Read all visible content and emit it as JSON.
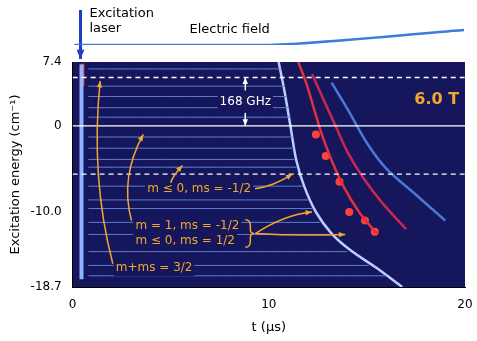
{
  "chart_data": [
    {
      "type": "line",
      "x_label": "t (µs)",
      "y_label": "Excitation energy (cm⁻¹)",
      "xlim": [
        0,
        20
      ],
      "xticks": [
        0,
        10,
        20
      ],
      "ylim": [
        -18.7,
        7.4
      ],
      "yticks": [
        -18.7,
        {
          "value": -10,
          "label": "-10.0"
        },
        0,
        7.4
      ],
      "grid": false,
      "annotations": {
        "laser": "Excitation laser",
        "splitting": "168 GHz",
        "field_strength": "6.0 T",
        "states": [
          "m ≤ 0, ms = -1/2",
          "m = 1, ms = -1/2",
          "m ≤ 0, ms = 1/2",
          "m+ms = 3/2"
        ]
      },
      "series": [
        {
          "color": "#5f7fd0",
          "x": [
            0.8,
            10.6
          ],
          "values": [
            6.6,
            6.6
          ]
        },
        {
          "color": "#5f7fd0",
          "x": [
            0.8,
            10.8
          ],
          "values": [
            4.6,
            4.6
          ]
        },
        {
          "color": "#5f7fd0",
          "x": [
            0.8,
            10.9
          ],
          "values": [
            3.4,
            3.4
          ]
        },
        {
          "color": "#5f7fd0",
          "x": [
            0.8,
            11.0
          ],
          "values": [
            2.1,
            2.1
          ]
        },
        {
          "color": "#5f7fd0",
          "x": [
            0.8,
            11.1
          ],
          "values": [
            1.0,
            1.0
          ]
        },
        {
          "color": "#5f7fd0",
          "x": [
            0.8,
            11.2
          ],
          "values": [
            -1.3,
            -1.3
          ]
        },
        {
          "color": "#5f7fd0",
          "x": [
            0.8,
            11.3
          ],
          "values": [
            -2.6,
            -2.6
          ]
        },
        {
          "color": "#5f7fd0",
          "x": [
            0.8,
            11.3
          ],
          "values": [
            -3.9,
            -3.9
          ]
        },
        {
          "color": "#5f7fd0",
          "x": [
            0.8,
            11.4
          ],
          "values": [
            -4.8,
            -4.8
          ]
        },
        {
          "color": "#5f7fd0",
          "x": [
            0.8,
            11.7
          ],
          "values": [
            -7.0,
            -7.0
          ]
        },
        {
          "color": "#5f7fd0",
          "x": [
            0.8,
            12.0
          ],
          "values": [
            -8.6,
            -8.6
          ]
        },
        {
          "color": "#5f7fd0",
          "x": [
            0.8,
            12.2
          ],
          "values": [
            -9.6,
            -9.6
          ]
        },
        {
          "color": "#5f7fd0",
          "x": [
            0.8,
            12.6
          ],
          "values": [
            -11.2,
            -11.2
          ]
        },
        {
          "color": "#5f7fd0",
          "x": [
            0.8,
            13.1
          ],
          "values": [
            -12.6,
            -12.6
          ]
        },
        {
          "color": "#5f7fd0",
          "x": [
            0.8,
            14.0
          ],
          "values": [
            -14.6,
            -14.6
          ]
        },
        {
          "color": "#5f7fd0",
          "x": [
            0.8,
            15.1
          ],
          "values": [
            -16.2,
            -16.2
          ]
        },
        {
          "color": "#5f7fd0",
          "x": [
            0.8,
            16.0
          ],
          "values": [
            -17.4,
            -17.4
          ]
        },
        {
          "color": "#ffffff",
          "line_style": "dashed",
          "x": [
            0,
            20
          ],
          "values": [
            5.6,
            5.6
          ]
        },
        {
          "color": "#ffffff",
          "line_style": "dashed",
          "x": [
            0,
            20
          ],
          "values": [
            -5.6,
            -5.6
          ]
        },
        {
          "color": "#ffffff",
          "line_style": "solid",
          "x": [
            0,
            20
          ],
          "values": [
            0,
            0
          ]
        },
        {
          "color": "#8fb4ff",
          "x": [
            0.45,
            0.45
          ],
          "values": [
            7.1,
            -17.8
          ]
        },
        {
          "color": "#e0303a",
          "x": [
            0.5,
            0.5
          ],
          "values": [
            7.2,
            4.6
          ]
        },
        {
          "color": "#b9d0ff",
          "x": [
            10.5,
            10.8,
            11.1,
            11.4,
            11.8,
            12.4,
            13.2,
            14.2,
            15.5,
            16.8
          ],
          "values": [
            7.4,
            4,
            0,
            -4,
            -7,
            -10,
            -12.5,
            -14.5,
            -16.5,
            -18.7
          ]
        },
        {
          "color": "#e0303a",
          "x": [
            11.5,
            11.9,
            12.3,
            12.7,
            13.2,
            13.8,
            14.6,
            15.5
          ],
          "values": [
            7.4,
            5,
            2,
            -1,
            -4,
            -7,
            -10,
            -12.5
          ]
        },
        {
          "color": "#c82850",
          "x": [
            12.2,
            12.8,
            13.4,
            14.0,
            14.8,
            15.8,
            17
          ],
          "values": [
            6,
            3,
            0,
            -3,
            -6,
            -9,
            -12
          ]
        },
        {
          "color": "#4a78d8",
          "x": [
            13.2,
            14,
            15,
            16,
            17.5,
            19
          ],
          "values": [
            5,
            2,
            -2,
            -5,
            -8,
            -11
          ]
        },
        {
          "color": "#ff4040",
          "type": "scatter",
          "marker": "circle",
          "x": [
            12.4,
            12.9,
            13.6,
            14.1,
            14.9,
            15.4
          ],
          "values": [
            -1,
            -3.5,
            -6.5,
            -10,
            -11,
            -12.3
          ]
        }
      ]
    },
    {
      "type": "line",
      "title": "Electric field",
      "xlim": [
        0,
        20
      ],
      "ylim": [
        0,
        1
      ],
      "tick_labels": false,
      "grid": false,
      "series": [
        {
          "color": "#3b7dd8",
          "x": [
            0,
            10,
            20
          ],
          "values": [
            0,
            0,
            0.5
          ]
        }
      ]
    }
  ]
}
